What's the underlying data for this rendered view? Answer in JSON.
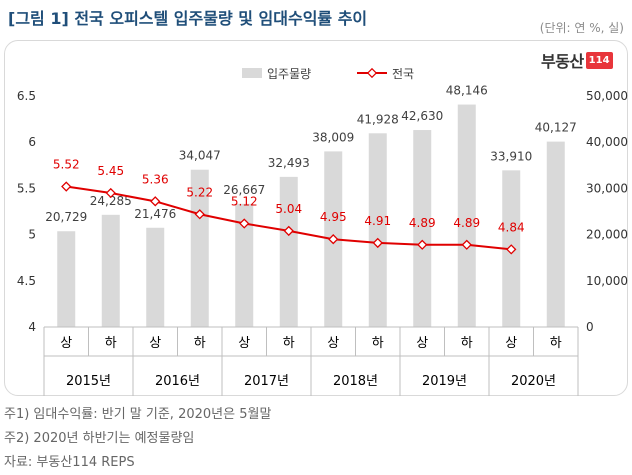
{
  "title": "[그림 1] 전국 오피스텔 입주물량 및 임대수익률 추이",
  "unit": "(단위: 연 %, 실)",
  "logo": {
    "brand": "부동산",
    "num": "114",
    "accent": "#e8353b"
  },
  "notes": {
    "n1": "주1) 임대수익률: 반기 말 기준, 2020년은 5월말",
    "n2": "주2) 2020년 하반기는 예정물량임",
    "n3": "자료: 부동산114 REPS"
  },
  "chart_data": {
    "type": "bar",
    "title": "",
    "categories": [
      "상",
      "하",
      "상",
      "하",
      "상",
      "하",
      "상",
      "하",
      "상",
      "하",
      "상",
      "하"
    ],
    "groups": [
      "2015년",
      "2016년",
      "2017년",
      "2018년",
      "2019년",
      "2020년"
    ],
    "series": [
      {
        "name": "입주물량",
        "type": "bar",
        "axis": "right",
        "color": "#d9d9d9",
        "values": [
          20729,
          24285,
          21476,
          34047,
          26667,
          32493,
          38009,
          41928,
          42630,
          48146,
          33910,
          40127
        ]
      },
      {
        "name": "전국",
        "type": "line",
        "axis": "left",
        "color": "#e00000",
        "values": [
          5.52,
          5.45,
          5.36,
          5.22,
          5.12,
          5.04,
          4.95,
          4.91,
          4.89,
          4.89,
          4.84,
          null
        ]
      }
    ],
    "y_left": {
      "min": 4,
      "max": 6.5,
      "ticks": [
        "4",
        "4.5",
        "5",
        "5.5",
        "6",
        "6.5"
      ]
    },
    "y_right": {
      "min": 0,
      "max": 50000,
      "ticks": [
        "0",
        "10,000",
        "20,000",
        "30,000",
        "40,000",
        "50,000"
      ]
    },
    "grid": false,
    "legend": "top-center"
  }
}
